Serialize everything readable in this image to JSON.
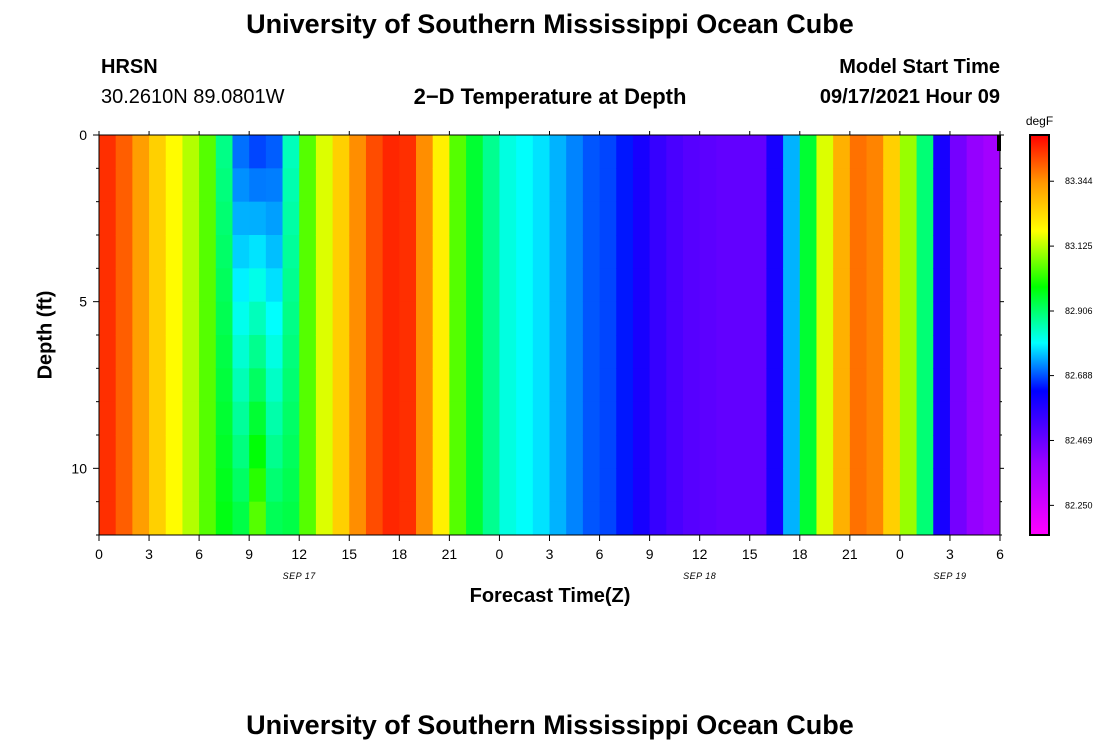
{
  "header": {
    "title": "University of Southern Mississippi Ocean Cube",
    "station": "HRSN",
    "coords": "30.2610N  89.0801W",
    "subtitle": "2−D Temperature at Depth",
    "model_label": "Model Start Time",
    "model_time": "09/17/2021 Hour 09"
  },
  "footer": {
    "title": "University of Southern Mississippi Ocean Cube"
  },
  "chart_data": {
    "type": "heatmap",
    "title": "2−D Temperature at Depth",
    "xlabel": "Forecast Time(Z)",
    "ylabel": "Depth (ft)",
    "xlim_hours": [
      0,
      54
    ],
    "ylim_ft": [
      0,
      12
    ],
    "x_ticks": [
      "0",
      "3",
      "6",
      "9",
      "12",
      "15",
      "18",
      "21",
      "0",
      "3",
      "6",
      "9",
      "12",
      "15",
      "18",
      "21",
      "0",
      "3",
      "6"
    ],
    "y_ticks": [
      "0",
      "5",
      "10"
    ],
    "date_labels": [
      {
        "label": "SEP 17",
        "hour": 12
      },
      {
        "label": "SEP 18",
        "hour": 36
      },
      {
        "label": "SEP 19",
        "hour": 51
      }
    ],
    "colorbar": {
      "unit": "degF",
      "min": 82.15,
      "max": 83.5,
      "ticks": [
        "83.344",
        "83.125",
        "82.906",
        "82.688",
        "82.469",
        "82.250"
      ]
    },
    "depth_rows_ft": [
      0,
      1,
      2,
      3,
      4,
      5,
      6,
      7,
      8,
      9,
      10,
      11
    ],
    "surface_temp_by_hour_degF": [
      83.45,
      83.4,
      83.33,
      83.25,
      83.18,
      83.12,
      83.05,
      82.95,
      82.75,
      82.68,
      82.72,
      82.9,
      83.05,
      83.15,
      83.25,
      83.35,
      83.42,
      83.46,
      83.45,
      83.35,
      83.2,
      83.05,
      82.95,
      82.88,
      82.82,
      82.8,
      82.78,
      82.75,
      82.72,
      82.69,
      82.68,
      82.65,
      82.6,
      82.55,
      82.52,
      82.5,
      82.49,
      82.48,
      82.48,
      82.48,
      82.6,
      82.75,
      82.95,
      83.15,
      83.3,
      83.38,
      83.36,
      83.25,
      83.1,
      82.9,
      82.6,
      82.45,
      82.4,
      82.37,
      82.33
    ],
    "cool_tongue": {
      "center_hour": 9,
      "surface_temp_degF": 82.68,
      "deep_temp_degF": 83.05
    }
  }
}
